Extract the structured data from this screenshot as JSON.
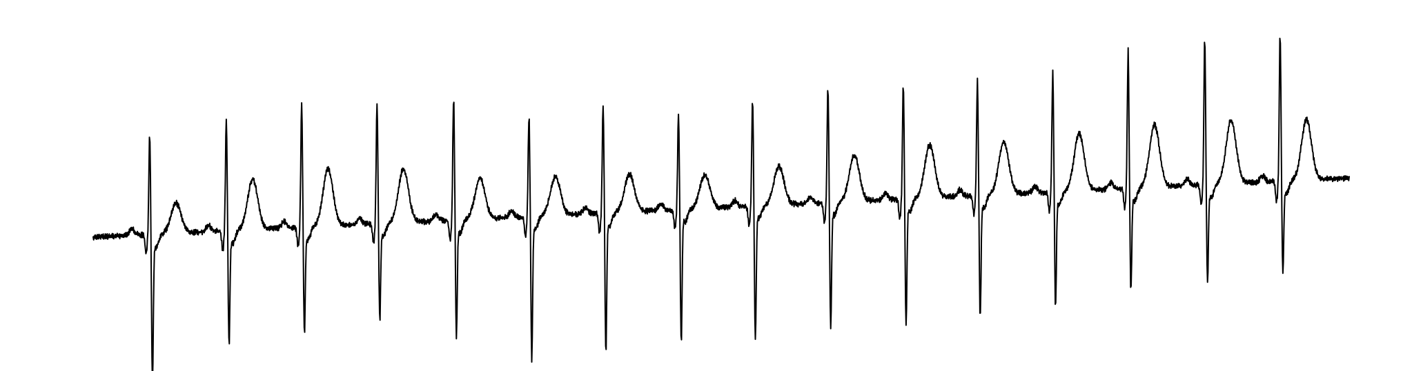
{
  "chart_data": {
    "type": "line",
    "title": "",
    "xlabel": "",
    "ylabel": "",
    "axes_visible": false,
    "grid": false,
    "legend": "none",
    "xlim": [
      0,
      10
    ],
    "ylim": [
      -1.3,
      1.6
    ],
    "line_color": "#000000",
    "beat_times": [
      0.45,
      1.06,
      1.66,
      2.26,
      2.87,
      3.47,
      4.06,
      4.66,
      5.25,
      5.85,
      6.45,
      7.04,
      7.64,
      8.24,
      8.85,
      9.45
    ],
    "r_amplitudes": [
      0.93,
      1.06,
      1.18,
      1.14,
      1.16,
      0.95,
      1.03,
      0.9,
      1.0,
      1.08,
      1.07,
      1.09,
      1.14,
      1.29,
      1.38,
      1.39
    ],
    "s_amplitudes": [
      -1.35,
      -1.03,
      -0.96,
      -0.86,
      -1.05,
      -1.3,
      -1.27,
      -1.21,
      -1.22,
      -1.14,
      -1.14,
      -1.11,
      -1.04,
      -0.92,
      -0.88,
      -0.83
    ],
    "t_amplitudes": [
      0.28,
      0.47,
      0.53,
      0.5,
      0.38,
      0.36,
      0.35,
      0.31,
      0.36,
      0.43,
      0.49,
      0.49,
      0.53,
      0.58,
      0.59,
      0.56
    ],
    "baseline_start": -0.35,
    "baseline_end": 0.2,
    "noise_amplitude": 0.025,
    "sample_rate_hz": 250
  }
}
